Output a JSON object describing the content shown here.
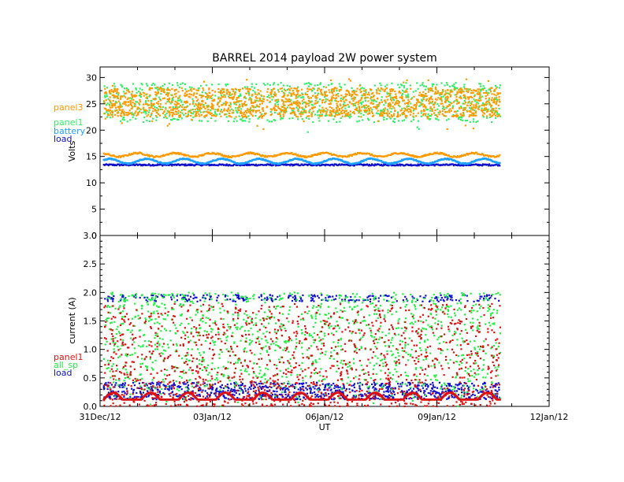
{
  "chart_data": [
    {
      "type": "scatter",
      "title": "BARREL 2014 payload 2W power system",
      "xlabel": "",
      "ylabel": "Volts",
      "xlim": [
        "31Dec/12",
        "12Jan/12"
      ],
      "ylim": [
        0,
        32
      ],
      "x_tick_labels": [
        "31Dec/12",
        "03Jan/12",
        "06Jan/12",
        "09Jan/12",
        "12Jan/12"
      ],
      "y_ticks": [
        0,
        5,
        10,
        15,
        20,
        25,
        30
      ],
      "grid": false,
      "legend_position": "left, outside plot",
      "series": [
        {
          "name": "panel3",
          "color": "#ff9900",
          "description_values": {
            "upper_band_range": [
              21,
              29
            ],
            "lower_band": 15.3
          }
        },
        {
          "name": "panel1",
          "color": "#33ee66",
          "values_range": [
            21,
            29
          ]
        },
        {
          "name": "battery",
          "color": "#1ea0ff",
          "values_range": [
            13.8,
            14.6
          ]
        },
        {
          "name": "load",
          "color": "#1010cc",
          "values": 13.4
        }
      ],
      "data_end": "10Jan/12 ~17:00"
    },
    {
      "type": "scatter",
      "title": "",
      "xlabel": "UT",
      "ylabel": "current (A)",
      "xlim": [
        "31Dec/12",
        "12Jan/12"
      ],
      "ylim": [
        0,
        3
      ],
      "x_tick_labels": [
        "31Dec/12",
        "03Jan/12",
        "06Jan/12",
        "09Jan/12",
        "12Jan/12"
      ],
      "y_ticks": [
        "0.0",
        "0.5",
        "1.0",
        "1.5",
        "2.0",
        "2.5",
        "3.0"
      ],
      "grid": false,
      "legend_position": "left, outside plot",
      "series": [
        {
          "name": "panel1",
          "color": "#dd1111",
          "values_range": [
            0.0,
            1.8
          ]
        },
        {
          "name": "all_sp",
          "color": "#22ee44",
          "values_range": [
            0.0,
            2.15
          ]
        },
        {
          "name": "load",
          "color": "#1010cc",
          "values_range": [
            0.1,
            2.0
          ]
        }
      ]
    }
  ],
  "colors": {
    "panel3": "#ff9900",
    "panel1_volts": "#33ee66",
    "battery": "#1ea0ff",
    "load": "#1010cc",
    "panel1_current": "#dd1111",
    "all_sp": "#22ee44"
  }
}
